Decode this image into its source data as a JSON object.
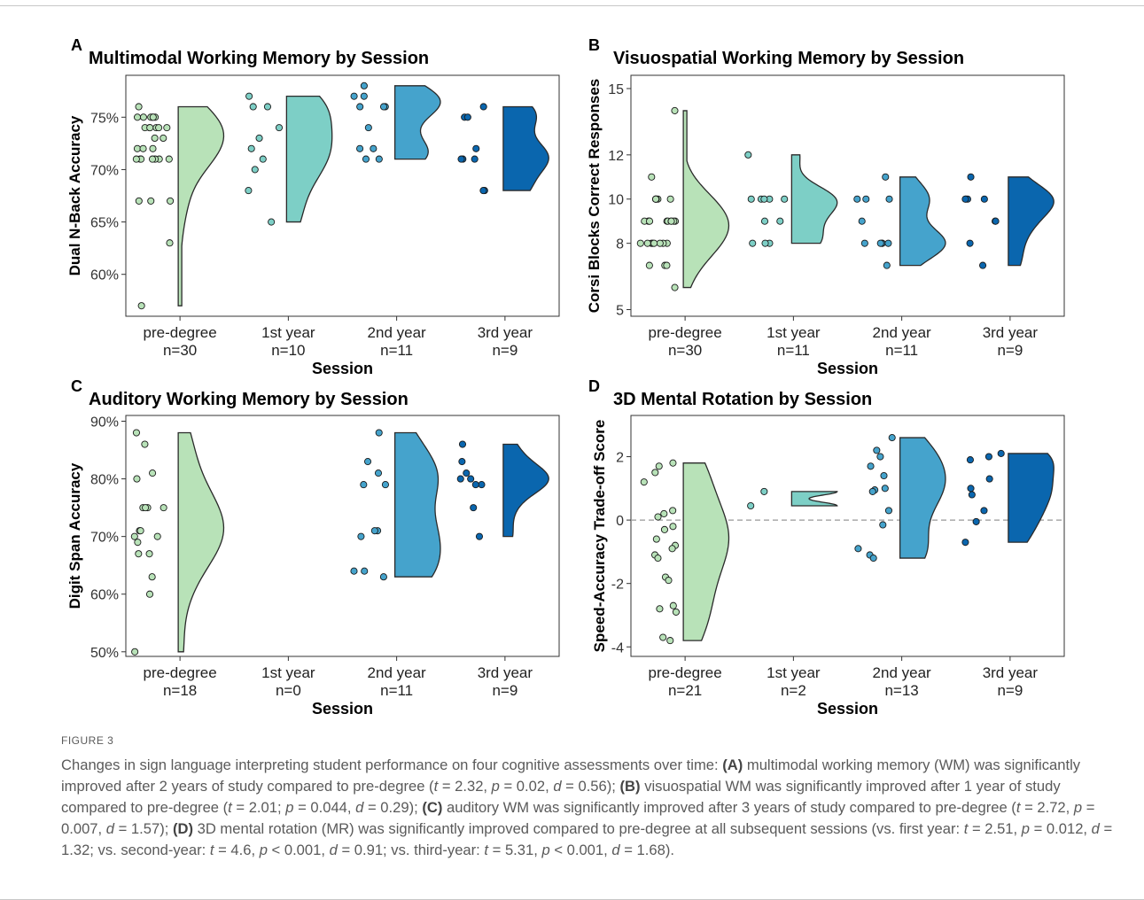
{
  "colors": {
    "pre-degree": "#b8e2b8",
    "1st year": "#7dcfc6",
    "2nd year": "#45a3cc",
    "3rd year": "#0a66ae",
    "outline": "#2a2a2a"
  },
  "figure_label": "FIGURE 3",
  "caption": [
    {
      "t": "Changes in sign language interpreting student performance on four cognitive assessments over time: "
    },
    {
      "t": "(A)",
      "b": true
    },
    {
      "t": " multimodal working memory (WM) was significantly improved after 2 years of study compared to pre-degree ("
    },
    {
      "t": "t",
      "i": true
    },
    {
      "t": " = 2.32, "
    },
    {
      "t": "p",
      "i": true
    },
    {
      "t": " = 0.02, "
    },
    {
      "t": "d",
      "i": true
    },
    {
      "t": " = 0.56); "
    },
    {
      "t": "(B)",
      "b": true
    },
    {
      "t": " visuospatial WM was significantly improved after 1 year of study compared to pre-degree ("
    },
    {
      "t": "t",
      "i": true
    },
    {
      "t": " = 2.01; "
    },
    {
      "t": "p",
      "i": true
    },
    {
      "t": " = 0.044, "
    },
    {
      "t": "d",
      "i": true
    },
    {
      "t": " = 0.29); "
    },
    {
      "t": "(C)",
      "b": true
    },
    {
      "t": " auditory WM was significantly improved after 3 years of study compared to pre-degree ("
    },
    {
      "t": "t",
      "i": true
    },
    {
      "t": " = 2.72, "
    },
    {
      "t": "p",
      "i": true
    },
    {
      "t": " = 0.007, "
    },
    {
      "t": "d",
      "i": true
    },
    {
      "t": " = 1.57); "
    },
    {
      "t": "(D)",
      "b": true
    },
    {
      "t": " 3D mental rotation (MR) was significantly improved compared to pre-degree at all subsequent sessions (vs. first year: "
    },
    {
      "t": "t",
      "i": true
    },
    {
      "t": " = 2.51, "
    },
    {
      "t": "p",
      "i": true
    },
    {
      "t": " = 0.012, "
    },
    {
      "t": "d",
      "i": true
    },
    {
      "t": " = 1.32; vs. second-year: "
    },
    {
      "t": "t",
      "i": true
    },
    {
      "t": " = 4.6, "
    },
    {
      "t": "p",
      "i": true
    },
    {
      "t": " < 0.001, "
    },
    {
      "t": "d",
      "i": true
    },
    {
      "t": " = 0.91; vs. third-year: "
    },
    {
      "t": "t",
      "i": true
    },
    {
      "t": " = 5.31, "
    },
    {
      "t": "p",
      "i": true
    },
    {
      "t": " < 0.001, "
    },
    {
      "t": "d",
      "i": true
    },
    {
      "t": " = 1.68)."
    }
  ],
  "chart_data": [
    {
      "panel": "A",
      "type": "raincloud",
      "title": "Multimodal Working Memory by Session",
      "xlabel": "Session",
      "ylabel": "Dual N-Back Accuracy",
      "ylim": [
        56,
        79
      ],
      "yticks": [
        60,
        65,
        70,
        75
      ],
      "ytick_labels": [
        "60%",
        "65%",
        "70%",
        "75%"
      ],
      "groups": [
        {
          "name": "pre-degree",
          "n": "n=30",
          "points": [
            75,
            75,
            76,
            75,
            75,
            75,
            75,
            74,
            74,
            74,
            74,
            73,
            74,
            72,
            72,
            72,
            71,
            71,
            71,
            71,
            71,
            71,
            71,
            67,
            67,
            67,
            63,
            57,
            74,
            73
          ],
          "range": [
            57,
            76
          ]
        },
        {
          "name": "1st year",
          "n": "n=10",
          "points": [
            76,
            76,
            77,
            74,
            73,
            72,
            71,
            70,
            68,
            65
          ],
          "range": [
            65,
            77
          ]
        },
        {
          "name": "2nd year",
          "n": "n=11",
          "points": [
            78,
            77,
            77,
            76,
            76,
            76,
            74,
            72,
            72,
            71,
            71
          ],
          "range": [
            71,
            78
          ]
        },
        {
          "name": "3rd year",
          "n": "n=9",
          "points": [
            76,
            75,
            75,
            72,
            71,
            71,
            71,
            68,
            68
          ],
          "range": [
            68,
            76
          ]
        }
      ]
    },
    {
      "panel": "B",
      "type": "raincloud",
      "title": "Visuospatial Working Memory by Session",
      "xlabel": "Session",
      "ylabel": "Corsi Blocks Correct Responses",
      "ylim": [
        4.7,
        15.6
      ],
      "yticks": [
        5,
        8,
        10,
        12,
        15
      ],
      "ytick_labels": [
        "5",
        "8",
        "10",
        "12",
        "15"
      ],
      "groups": [
        {
          "name": "pre-degree",
          "n": "n=30",
          "points": [
            14,
            11,
            10,
            10,
            10,
            10,
            10,
            10,
            9,
            9,
            9,
            9,
            9,
            9,
            9,
            9,
            9,
            9,
            8,
            8,
            8,
            8,
            8,
            8,
            8,
            8,
            7,
            7,
            7,
            6
          ],
          "range": [
            6,
            14
          ]
        },
        {
          "name": "1st year",
          "n": "n=11",
          "points": [
            12,
            10,
            10,
            10,
            10,
            10,
            9,
            9,
            8,
            8,
            8
          ],
          "range": [
            8,
            12
          ]
        },
        {
          "name": "2nd year",
          "n": "n=11",
          "points": [
            11,
            10,
            10,
            10,
            9,
            8,
            8,
            8,
            8,
            8,
            7
          ],
          "range": [
            7,
            11
          ]
        },
        {
          "name": "3rd year",
          "n": "n=9",
          "points": [
            11,
            10,
            10,
            10,
            10,
            9,
            9,
            8,
            7
          ],
          "range": [
            7,
            11
          ]
        }
      ]
    },
    {
      "panel": "C",
      "type": "raincloud",
      "title": "Auditory Working Memory by Session",
      "xlabel": "Session",
      "ylabel": "Digit Span Accuracy",
      "ylim": [
        49.2,
        91
      ],
      "yticks": [
        50,
        60,
        70,
        80,
        90
      ],
      "ytick_labels": [
        "50%",
        "60%",
        "70%",
        "80%",
        "90%"
      ],
      "groups": [
        {
          "name": "pre-degree",
          "n": "n=18",
          "points": [
            88,
            86,
            81,
            80,
            75,
            75,
            75,
            75,
            71,
            71,
            70,
            70,
            69,
            67,
            67,
            63,
            60,
            50
          ],
          "range": [
            50,
            88
          ]
        },
        {
          "name": "1st year",
          "n": "n=0",
          "points": [],
          "range": null
        },
        {
          "name": "2nd year",
          "n": "n=11",
          "points": [
            88,
            83,
            81,
            79,
            79,
            71,
            71,
            70,
            64,
            64,
            63
          ],
          "range": [
            63,
            88
          ]
        },
        {
          "name": "3rd year",
          "n": "n=9",
          "points": [
            86,
            83,
            81,
            80,
            80,
            79,
            79,
            75,
            70
          ],
          "range": [
            70,
            86
          ]
        }
      ]
    },
    {
      "panel": "D",
      "type": "raincloud",
      "title": "3D Mental Rotation by Session",
      "xlabel": "Session",
      "ylabel": "Speed-Accuracy Trade-off Score",
      "ylim": [
        -4.3,
        3.3
      ],
      "yticks": [
        -4,
        -2,
        0,
        2
      ],
      "ytick_labels": [
        "-4",
        "-2",
        "0",
        "2"
      ],
      "refline": 0,
      "groups": [
        {
          "name": "pre-degree",
          "n": "n=21",
          "points": [
            1.8,
            1.7,
            1.5,
            1.2,
            0.3,
            0.2,
            0.1,
            -0.2,
            -0.3,
            -0.6,
            -0.8,
            -0.9,
            -1.1,
            -1.2,
            -1.8,
            -1.9,
            -2.7,
            -2.8,
            -2.9,
            -3.7,
            -3.8
          ],
          "range": [
            -3.8,
            1.8
          ]
        },
        {
          "name": "1st year",
          "n": "n=2",
          "points": [
            0.9,
            0.45
          ],
          "range": [
            0.45,
            0.9
          ]
        },
        {
          "name": "2nd year",
          "n": "n=13",
          "points": [
            2.6,
            2.2,
            2.0,
            1.7,
            1.4,
            1.0,
            0.95,
            0.9,
            0.3,
            -0.15,
            -0.9,
            -1.1,
            -1.2
          ],
          "range": [
            -1.2,
            2.6
          ]
        },
        {
          "name": "3rd year",
          "n": "n=9",
          "points": [
            2.1,
            2.0,
            1.9,
            1.3,
            1.0,
            0.8,
            0.3,
            -0.05,
            -0.7
          ],
          "range": [
            -0.7,
            2.1
          ]
        }
      ]
    }
  ]
}
